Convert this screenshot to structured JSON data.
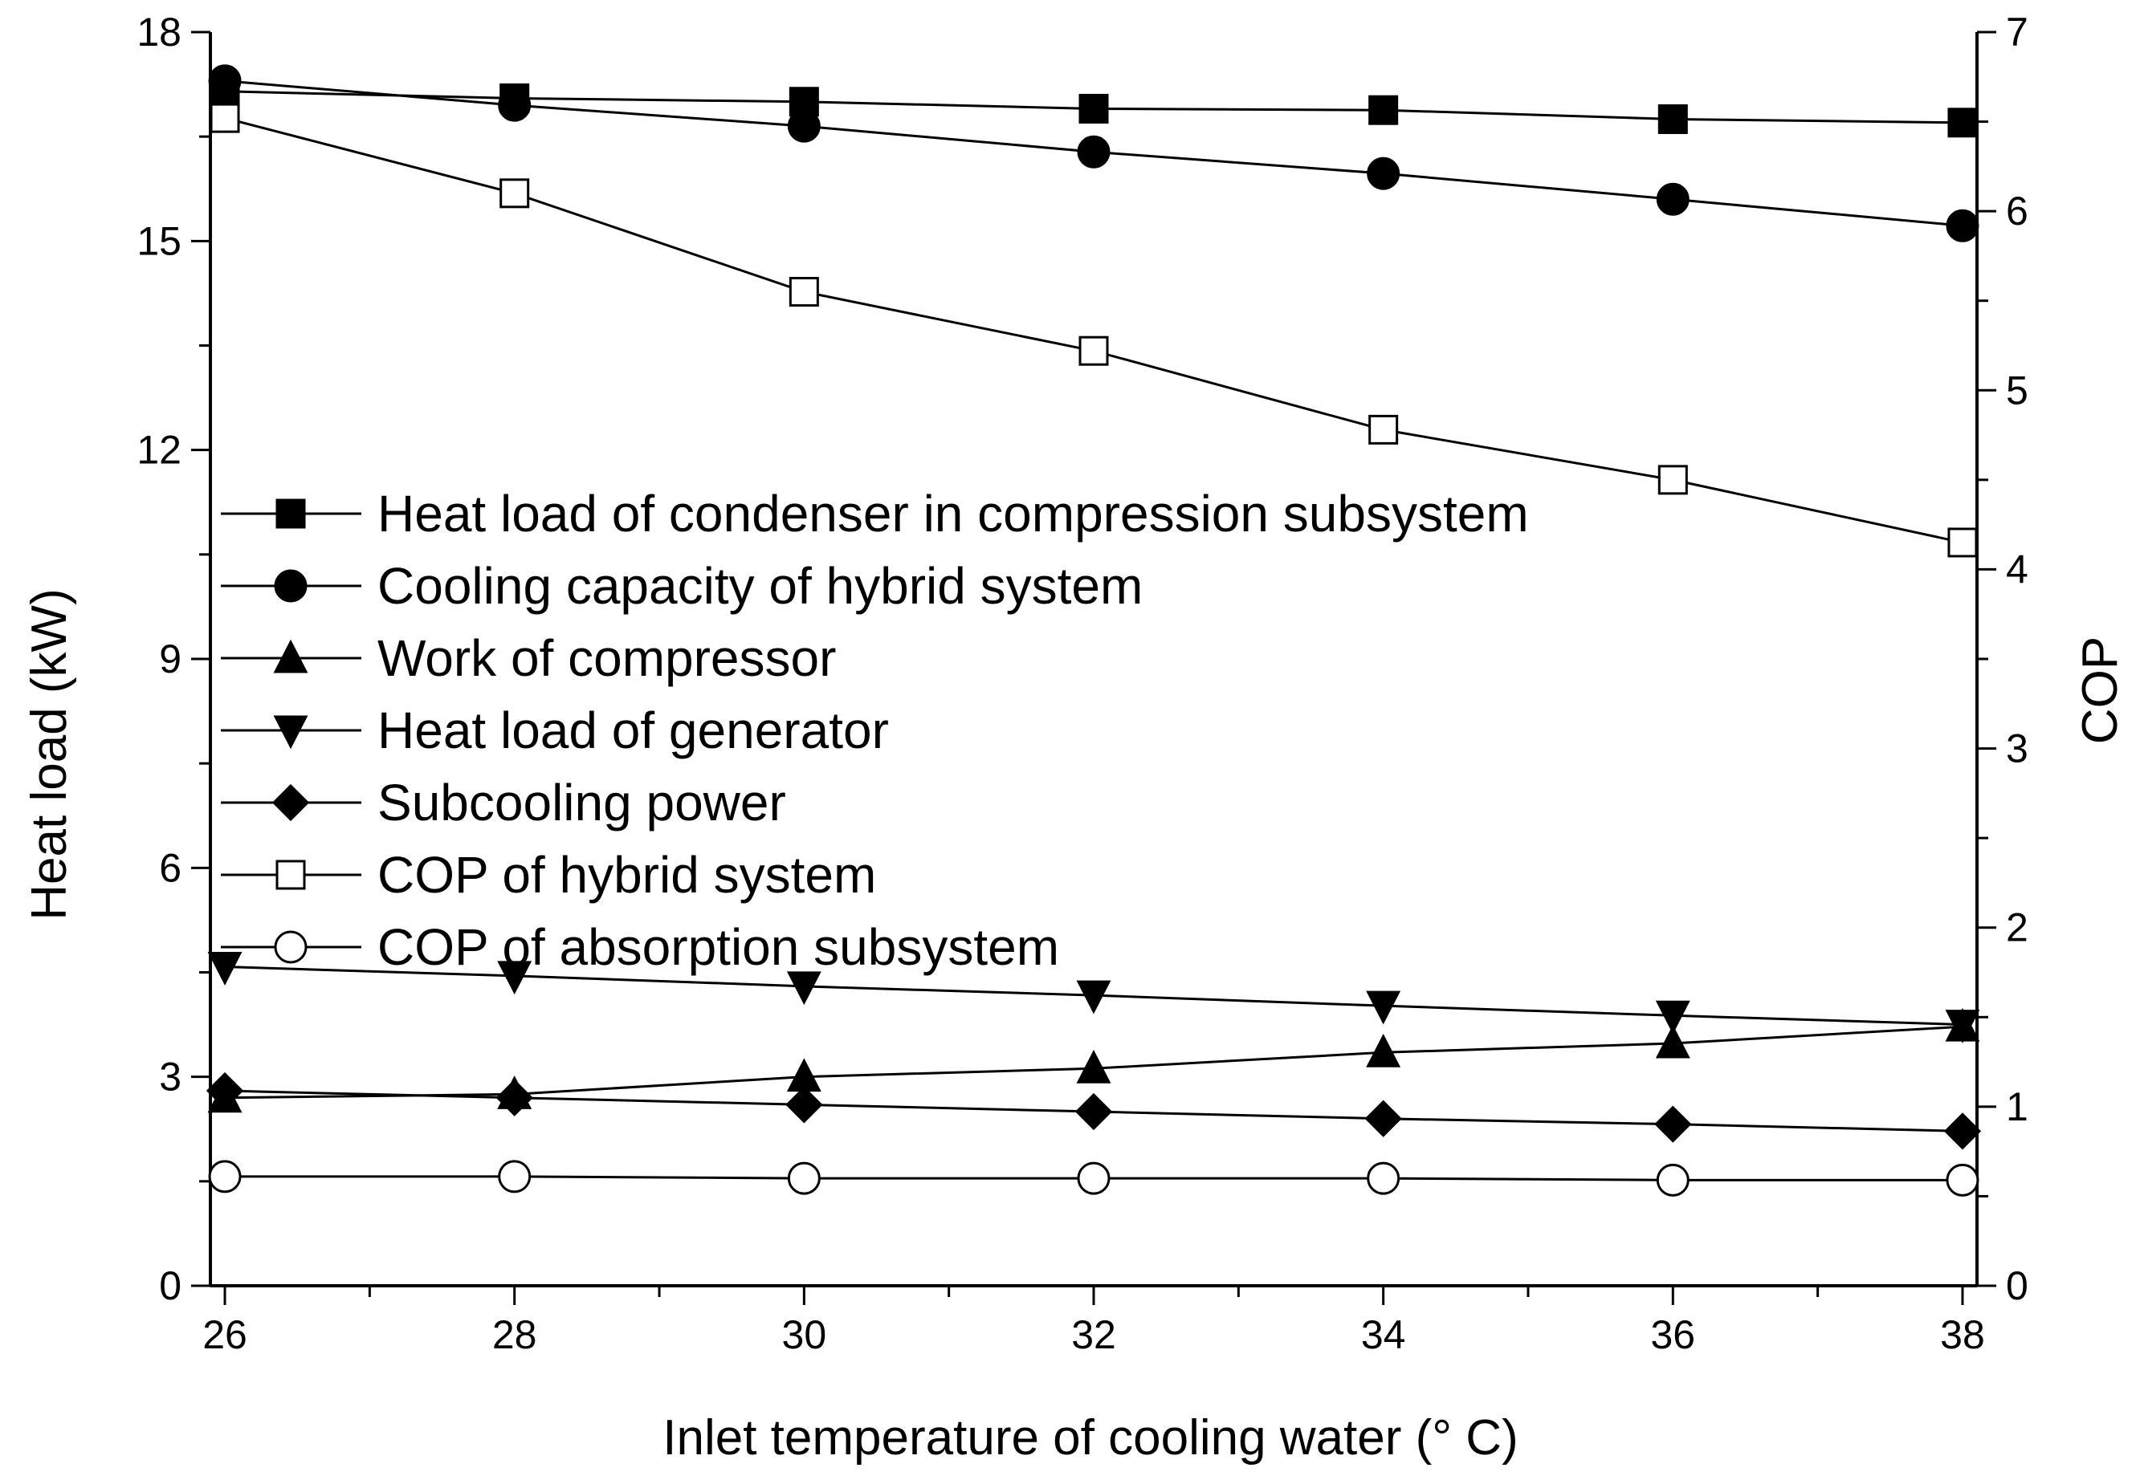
{
  "chart_data": {
    "type": "line",
    "title": "",
    "xlabel": "Inlet temperature of cooling water (°  C)",
    "ylabel": "Heat load (kW)",
    "y2label": "COP",
    "x": [
      26,
      28,
      30,
      32,
      34,
      36,
      38
    ],
    "xlim": [
      25.9,
      38.1
    ],
    "ylim": [
      0,
      18
    ],
    "y2lim": [
      0,
      7
    ],
    "x_ticks": [
      "26",
      "28",
      "30",
      "32",
      "34",
      "36",
      "38"
    ],
    "y_ticks": [
      "0",
      "3",
      "6",
      "9",
      "12",
      "15",
      "18"
    ],
    "y2_ticks": [
      "0",
      "1",
      "2",
      "3",
      "4",
      "5",
      "6",
      "7"
    ],
    "legend_position": "center-left",
    "series": [
      {
        "name": "Heat load of condenser in compression subsystem",
        "axis": "left",
        "marker": "square-filled",
        "values": [
          17.15,
          17.05,
          17.0,
          16.9,
          16.88,
          16.75,
          16.7
        ]
      },
      {
        "name": "Cooling capacity of hybrid system",
        "axis": "left",
        "marker": "circle-filled",
        "values": [
          17.3,
          16.95,
          16.65,
          16.28,
          15.97,
          15.6,
          15.22
        ]
      },
      {
        "name": "Work of compressor",
        "axis": "left",
        "marker": "triangle-up-filled",
        "values": [
          2.7,
          2.75,
          3.0,
          3.12,
          3.35,
          3.48,
          3.72
        ]
      },
      {
        "name": "Heat load of generator",
        "axis": "left",
        "marker": "triangle-down-filled",
        "values": [
          4.58,
          4.45,
          4.3,
          4.17,
          4.02,
          3.88,
          3.75
        ]
      },
      {
        "name": "Subcooling power",
        "axis": "left",
        "marker": "diamond-filled",
        "values": [
          2.8,
          2.7,
          2.6,
          2.5,
          2.4,
          2.32,
          2.22
        ]
      },
      {
        "name": "COP of hybrid system",
        "axis": "right",
        "marker": "square-open",
        "values": [
          6.52,
          6.1,
          5.55,
          5.22,
          4.78,
          4.5,
          4.15
        ]
      },
      {
        "name": "COP of absorption subsystem",
        "axis": "right",
        "marker": "circle-open",
        "values": [
          0.61,
          0.61,
          0.6,
          0.6,
          0.6,
          0.59,
          0.59
        ]
      }
    ]
  }
}
